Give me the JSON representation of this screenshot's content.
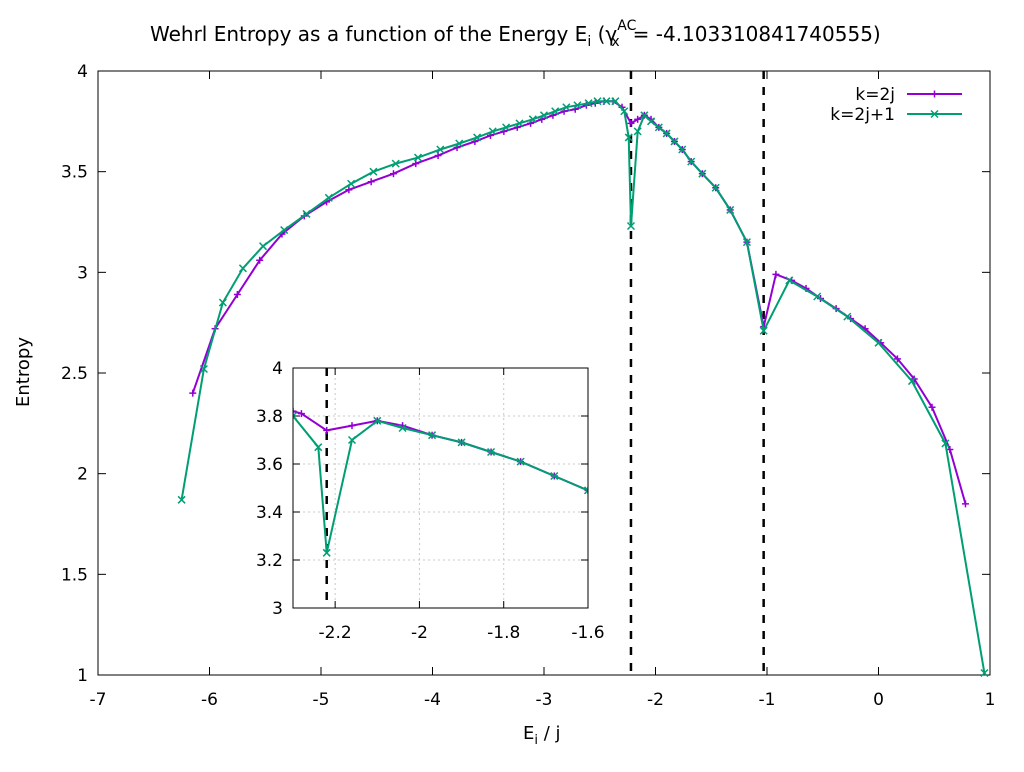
{
  "chart_data": [
    {
      "type": "line",
      "title_main": "Wehrl Entropy as a function of the Energy E",
      "title_sub_i": "i",
      "title_gamma": "γ",
      "title_sup": "AC",
      "title_subx": "x",
      "title_value": "= -4.103310841740555)",
      "xlabel_main": "E",
      "xlabel_sub": "i",
      "xlabel_rest": " / j",
      "ylabel": "Entropy",
      "xlim": [
        -7,
        1
      ],
      "ylim": [
        1,
        4
      ],
      "xticks": [
        -7,
        -6,
        -5,
        -4,
        -3,
        -2,
        -1,
        0,
        1
      ],
      "yticks": [
        1,
        1.5,
        2,
        2.5,
        3,
        3.5,
        4
      ],
      "xtick_labels": [
        "-7",
        "-6",
        "-5",
        "-4",
        "-3",
        "-2",
        "-1",
        "0",
        "1"
      ],
      "ytick_labels": [
        "1",
        "1.5",
        "2",
        "2.5",
        "3",
        "3.5",
        "4"
      ],
      "vlines": [
        -2.22,
        -1.03
      ],
      "grid": false,
      "legend_position": "top-right",
      "series": [
        {
          "name": "k=2j",
          "color": "#9400d3",
          "marker": "plus",
          "x": [
            -6.15,
            -5.95,
            -5.75,
            -5.55,
            -5.35,
            -5.15,
            -4.95,
            -4.75,
            -4.55,
            -4.35,
            -4.15,
            -3.95,
            -3.78,
            -3.62,
            -3.48,
            -3.36,
            -3.24,
            -3.12,
            -3.02,
            -2.92,
            -2.82,
            -2.72,
            -2.62,
            -2.54,
            -2.46,
            -2.38,
            -2.3,
            -2.22,
            -2.16,
            -2.1,
            -2.04,
            -1.97,
            -1.9,
            -1.83,
            -1.76,
            -1.68,
            -1.58,
            -1.46,
            -1.33,
            -1.18,
            -1.03,
            -0.92,
            -0.78,
            -0.65,
            -0.52,
            -0.38,
            -0.25,
            -0.12,
            0.02,
            0.17,
            0.32,
            0.48,
            0.64,
            0.78
          ],
          "y": [
            2.4,
            2.72,
            2.89,
            3.06,
            3.19,
            3.28,
            3.35,
            3.41,
            3.45,
            3.49,
            3.54,
            3.58,
            3.62,
            3.65,
            3.68,
            3.7,
            3.72,
            3.74,
            3.76,
            3.78,
            3.8,
            3.81,
            3.83,
            3.84,
            3.85,
            3.85,
            3.82,
            3.74,
            3.76,
            3.78,
            3.76,
            3.72,
            3.69,
            3.65,
            3.61,
            3.55,
            3.49,
            3.42,
            3.31,
            3.15,
            2.73,
            2.99,
            2.96,
            2.92,
            2.87,
            2.82,
            2.77,
            2.72,
            2.65,
            2.57,
            2.47,
            2.33,
            2.12,
            1.85
          ]
        },
        {
          "name": "k=2j+1",
          "color": "#009e73",
          "marker": "cross",
          "x": [
            -6.25,
            -6.05,
            -5.88,
            -5.7,
            -5.52,
            -5.33,
            -5.13,
            -4.93,
            -4.73,
            -4.53,
            -4.33,
            -4.13,
            -3.93,
            -3.76,
            -3.6,
            -3.46,
            -3.34,
            -3.22,
            -3.1,
            -3.0,
            -2.9,
            -2.8,
            -2.7,
            -2.6,
            -2.52,
            -2.44,
            -2.36,
            -2.28,
            -2.24,
            -2.22,
            -2.16,
            -2.1,
            -2.04,
            -1.97,
            -1.9,
            -1.83,
            -1.76,
            -1.68,
            -1.58,
            -1.46,
            -1.33,
            -1.18,
            -1.03,
            -0.8,
            -0.55,
            -0.28,
            0.0,
            0.3,
            0.6,
            0.95
          ],
          "y": [
            1.87,
            2.52,
            2.85,
            3.02,
            3.13,
            3.21,
            3.29,
            3.37,
            3.44,
            3.5,
            3.54,
            3.57,
            3.61,
            3.64,
            3.67,
            3.7,
            3.72,
            3.74,
            3.76,
            3.78,
            3.8,
            3.82,
            3.83,
            3.84,
            3.85,
            3.85,
            3.85,
            3.8,
            3.67,
            3.23,
            3.7,
            3.78,
            3.75,
            3.72,
            3.69,
            3.65,
            3.61,
            3.55,
            3.49,
            3.42,
            3.31,
            3.15,
            2.71,
            2.96,
            2.88,
            2.78,
            2.65,
            2.46,
            2.15,
            1.01
          ]
        }
      ]
    },
    {
      "type": "line",
      "xlim": [
        -2.3,
        -1.6
      ],
      "ylim": [
        3,
        4
      ],
      "xticks": [
        -2.2,
        -2.0,
        -1.8,
        -1.6
      ],
      "yticks": [
        3.0,
        3.2,
        3.4,
        3.6,
        3.8,
        4.0
      ],
      "xtick_labels": [
        "-2.2",
        "-2",
        "-1.8",
        "-1.6"
      ],
      "ytick_labels": [
        "3",
        "3.2",
        "3.4",
        "3.6",
        "3.8",
        "4"
      ],
      "vlines": [
        -2.22
      ],
      "grid": true,
      "series": [
        {
          "name": "k=2j",
          "color": "#9400d3",
          "marker": "plus",
          "x": [
            -2.3,
            -2.28,
            -2.22,
            -2.16,
            -2.1,
            -2.04,
            -1.97,
            -1.9,
            -1.83,
            -1.76,
            -1.68,
            -1.6
          ],
          "y": [
            3.82,
            3.81,
            3.74,
            3.76,
            3.78,
            3.76,
            3.72,
            3.69,
            3.65,
            3.61,
            3.55,
            3.49
          ]
        },
        {
          "name": "k=2j+1",
          "color": "#009e73",
          "marker": "cross",
          "x": [
            -2.3,
            -2.24,
            -2.22,
            -2.16,
            -2.1,
            -2.04,
            -1.97,
            -1.9,
            -1.83,
            -1.76,
            -1.68,
            -1.6
          ],
          "y": [
            3.8,
            3.67,
            3.23,
            3.7,
            3.78,
            3.75,
            3.72,
            3.69,
            3.65,
            3.61,
            3.55,
            3.49
          ]
        }
      ]
    }
  ]
}
